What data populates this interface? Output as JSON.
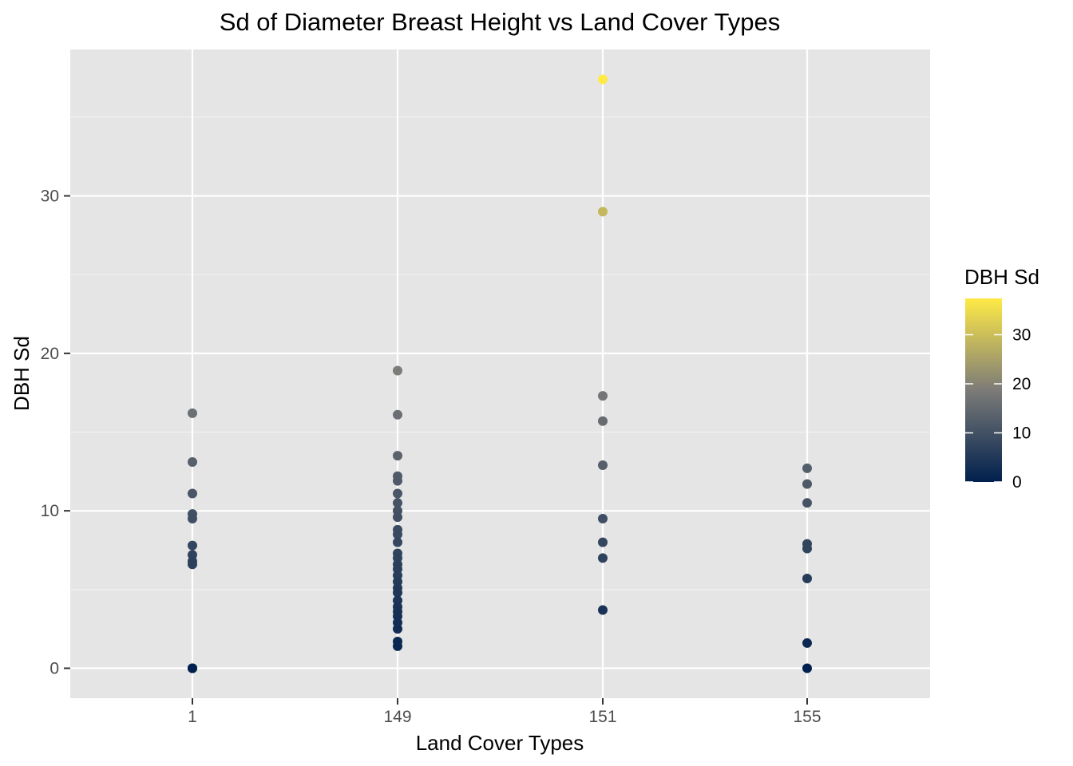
{
  "chart_data": {
    "type": "scatter",
    "title": "Sd of Diameter Breast Height vs Land Cover Types",
    "xlabel": "Land Cover Types",
    "ylabel": "DBH Sd",
    "categories": [
      "1",
      "149",
      "151",
      "155"
    ],
    "y_ticks": [
      0,
      10,
      20,
      30
    ],
    "ylim": [
      -1.9,
      39.3
    ],
    "grid": true,
    "legend": {
      "title": "DBH Sd",
      "position": "right",
      "type": "colorbar",
      "ticks": [
        0,
        10,
        20,
        30
      ],
      "range": [
        0,
        37.4
      ],
      "colors": [
        "#00204D",
        "#7C7B78",
        "#FFEA46"
      ]
    },
    "series": [
      {
        "category": "1",
        "values": [
          16.2,
          13.1,
          11.1,
          9.8,
          9.5,
          7.8,
          7.2,
          6.8,
          6.6,
          0,
          0,
          0
        ]
      },
      {
        "category": "149",
        "values": [
          18.9,
          16.1,
          13.5,
          12.2,
          11.9,
          11.1,
          10.5,
          10.0,
          9.6,
          8.8,
          8.5,
          8.0,
          7.3,
          7.0,
          6.6,
          6.3,
          5.9,
          5.5,
          5.1,
          4.8,
          4.3,
          3.9,
          3.6,
          3.3,
          2.9,
          2.5,
          1.7,
          1.4
        ]
      },
      {
        "category": "151",
        "values": [
          37.4,
          29.0,
          17.3,
          15.7,
          12.9,
          9.5,
          8.0,
          7.0,
          3.7
        ]
      },
      {
        "category": "155",
        "values": [
          12.7,
          11.7,
          10.5,
          7.9,
          7.6,
          5.7,
          1.6,
          0
        ]
      }
    ]
  }
}
